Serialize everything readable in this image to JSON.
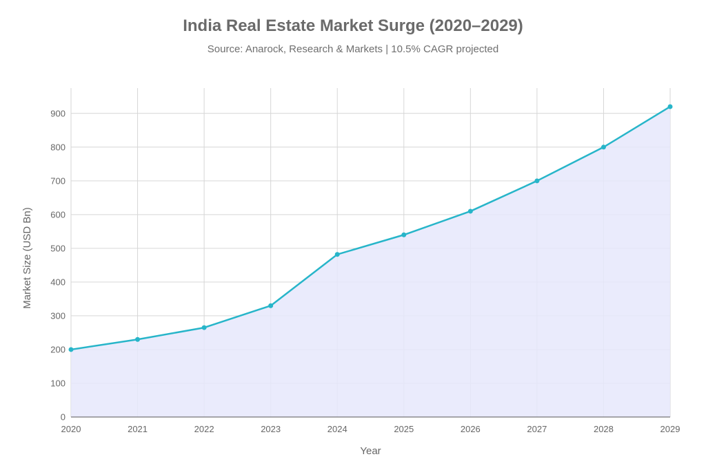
{
  "chart_data": {
    "type": "area",
    "title": "India Real Estate Market Surge (2020–2029)",
    "subtitle": "Source: Anarock, Research & Markets | 10.5% CAGR projected",
    "xlabel": "Year",
    "ylabel": "Market Size (USD Bn)",
    "x": [
      "2020",
      "2021",
      "2022",
      "2023",
      "2024",
      "2025",
      "2026",
      "2027",
      "2028",
      "2029"
    ],
    "series": [
      {
        "values": [
          200,
          230,
          265,
          330,
          482,
          540,
          610,
          700,
          800,
          920
        ]
      }
    ],
    "ylim": [
      0,
      975
    ],
    "yticks": [
      "0",
      "100",
      "200",
      "300",
      "400",
      "500",
      "600",
      "700",
      "800",
      "900"
    ],
    "grid": true,
    "legend": "none",
    "colors": {
      "line": "#27b5c9",
      "fill": "#e6e7fc",
      "grid": "#d6d6d6",
      "axis": "#555555"
    }
  }
}
